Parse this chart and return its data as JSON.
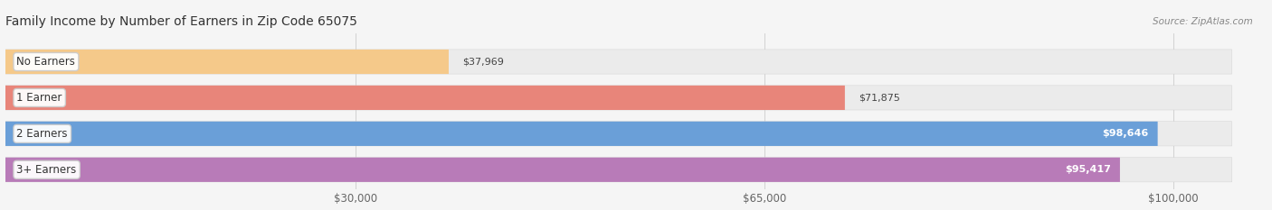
{
  "title": "Family Income by Number of Earners in Zip Code 65075",
  "source": "Source: ZipAtlas.com",
  "categories": [
    "No Earners",
    "1 Earner",
    "2 Earners",
    "3+ Earners"
  ],
  "values": [
    37969,
    71875,
    98646,
    95417
  ],
  "bar_colors": [
    "#f5c98a",
    "#e8857a",
    "#6a9fd8",
    "#b87bb8"
  ],
  "label_pill_colors": [
    "#f5c98a",
    "#e06060",
    "#5588cc",
    "#9955aa"
  ],
  "value_labels": [
    "$37,969",
    "$71,875",
    "$98,646",
    "$95,417"
  ],
  "value_inside": [
    false,
    false,
    true,
    true
  ],
  "xlim_min": 0,
  "xlim_max": 108000,
  "bar_max": 105000,
  "xticks": [
    30000,
    65000,
    100000
  ],
  "xtick_labels": [
    "$30,000",
    "$65,000",
    "$100,000"
  ],
  "background_color": "#f5f5f5",
  "bar_bg_color": "#ebebeb",
  "title_fontsize": 10,
  "source_fontsize": 7.5,
  "label_fontsize": 8.5,
  "value_fontsize": 8
}
